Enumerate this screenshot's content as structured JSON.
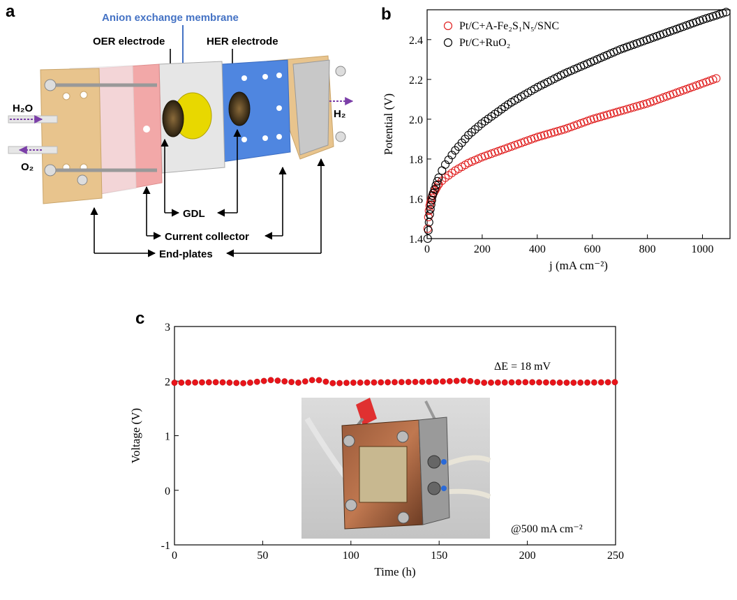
{
  "panels": {
    "a": {
      "letter": "a",
      "labels": {
        "membrane": "Anion exchange membrane",
        "oer": "OER electrode",
        "her": "HER electrode",
        "h2o": "H₂O",
        "o2": "O₂",
        "h2": "H₂",
        "gdl": "GDL",
        "collector": "Current collector",
        "endplates": "End-plates"
      },
      "colors": {
        "membrane_label": "#4472c4",
        "endplate": "#e8c48d",
        "collector_left": "#f2a4a4",
        "her_plate": "#4f86e0",
        "membrane_disc": "#e8d800",
        "arrow": "#7b3fa8"
      }
    },
    "b": {
      "letter": "b"
    },
    "c": {
      "letter": "c",
      "annotation_delta": "ΔE = 18 mV",
      "annotation_current": "@500 mA cm⁻²",
      "photo_icon": "electrolyzer-cell-photo"
    }
  },
  "chart_data": [
    {
      "id": "b",
      "type": "scatter",
      "xlabel": "j (mA cm⁻²)",
      "ylabel": "Potential (V)",
      "xlim": [
        0,
        1100
      ],
      "ylim": [
        1.4,
        2.55
      ],
      "x_ticks": [
        "0",
        "200",
        "400",
        "600",
        "800",
        "1000"
      ],
      "y_ticks": [
        "1.4",
        "1.6",
        "1.8",
        "2.0",
        "2.2",
        "2.4"
      ],
      "legend_position": "top-left",
      "grid": false,
      "series": [
        {
          "name": "Pt/C+A-Fe₂S₁N₅/SNC",
          "color": "#e02020",
          "x": [
            2,
            5,
            10,
            20,
            40,
            60,
            100,
            150,
            200,
            300,
            400,
            500,
            600,
            700,
            800,
            900,
            1000,
            1060
          ],
          "y": [
            1.45,
            1.52,
            1.57,
            1.62,
            1.67,
            1.7,
            1.74,
            1.78,
            1.81,
            1.86,
            1.91,
            1.95,
            2.0,
            2.04,
            2.08,
            2.13,
            2.18,
            2.21
          ]
        },
        {
          "name": "Pt/C+RuO₂",
          "color": "#000000",
          "x": [
            2,
            5,
            10,
            20,
            40,
            60,
            100,
            150,
            200,
            300,
            400,
            500,
            600,
            700,
            800,
            900,
            1000,
            1090
          ],
          "y": [
            1.4,
            1.45,
            1.53,
            1.62,
            1.7,
            1.76,
            1.84,
            1.92,
            1.98,
            2.08,
            2.16,
            2.23,
            2.29,
            2.35,
            2.4,
            2.45,
            2.5,
            2.54
          ]
        }
      ]
    },
    {
      "id": "c",
      "type": "scatter",
      "xlabel": "Time (h)",
      "ylabel": "Voltage (V)",
      "xlim": [
        0,
        250
      ],
      "ylim": [
        -1,
        3
      ],
      "x_ticks": [
        "0",
        "50",
        "100",
        "150",
        "200",
        "250"
      ],
      "y_ticks": [
        "-1",
        "0",
        "1",
        "2",
        "3"
      ],
      "grid": false,
      "series": [
        {
          "name": "",
          "color": "#e8141a",
          "x": [
            0,
            25,
            40,
            55,
            70,
            80,
            90,
            100,
            125,
            150,
            165,
            175,
            200,
            225,
            250
          ],
          "y": [
            1.97,
            1.98,
            1.96,
            2.02,
            1.97,
            2.03,
            1.96,
            1.97,
            1.98,
            1.99,
            2.01,
            1.97,
            1.98,
            1.97,
            1.98
          ]
        }
      ]
    }
  ]
}
